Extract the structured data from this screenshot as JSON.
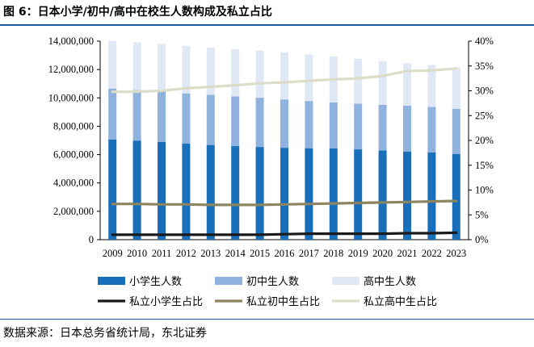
{
  "figure": {
    "title": "图 6：日本小学/初中/高中在校生人数构成及私立占比",
    "source": "数据来源：日本总务省统计局，东北证券"
  },
  "colors": {
    "elementary": "#1a6fba",
    "junior": "#8fb2df",
    "high": "#dfe8f4",
    "line_elementary": "#1a1a1a",
    "line_junior": "#8c8560",
    "line_high": "#dcdcc8",
    "rule": "#1a5a96"
  },
  "chart_data": {
    "type": "bar",
    "stacked": true,
    "categories": [
      "2009",
      "2010",
      "2011",
      "2012",
      "2013",
      "2014",
      "2015",
      "2016",
      "2017",
      "2018",
      "2019",
      "2020",
      "2021",
      "2022",
      "2023"
    ],
    "y_left": {
      "min": 0,
      "max": 14000000,
      "step": 2000000,
      "ticks": [
        "0",
        "2,000,000",
        "4,000,000",
        "6,000,000",
        "8,000,000",
        "10,000,000",
        "12,000,000",
        "14,000,000"
      ]
    },
    "y_right": {
      "min": 0,
      "max": 40,
      "step": 5,
      "ticks": [
        "0%",
        "5%",
        "10%",
        "15%",
        "20%",
        "25%",
        "30%",
        "35%",
        "40%"
      ]
    },
    "series": [
      {
        "name": "小学生人数",
        "kind": "bar",
        "axis": "left",
        "values": [
          7060000,
          6990000,
          6890000,
          6770000,
          6680000,
          6600000,
          6540000,
          6480000,
          6450000,
          6430000,
          6370000,
          6300000,
          6220000,
          6150000,
          6050000
        ]
      },
      {
        "name": "初中生人数",
        "kind": "bar",
        "axis": "left",
        "values": [
          3600000,
          3560000,
          3570000,
          3550000,
          3540000,
          3500000,
          3470000,
          3410000,
          3330000,
          3250000,
          3220000,
          3210000,
          3230000,
          3210000,
          3180000
        ]
      },
      {
        "name": "高中生人数",
        "kind": "bar",
        "axis": "left",
        "values": [
          3350000,
          3370000,
          3350000,
          3350000,
          3320000,
          3330000,
          3320000,
          3310000,
          3280000,
          3240000,
          3170000,
          3090000,
          3010000,
          2960000,
          2920000
        ]
      },
      {
        "name": "私立小学生占比",
        "kind": "line",
        "axis": "right",
        "values": [
          1.0,
          1.0,
          1.0,
          1.0,
          1.0,
          1.0,
          1.0,
          1.1,
          1.2,
          1.2,
          1.2,
          1.2,
          1.3,
          1.3,
          1.4
        ]
      },
      {
        "name": "私立初中生占比",
        "kind": "line",
        "axis": "right",
        "values": [
          7.2,
          7.2,
          7.1,
          7.1,
          7.0,
          7.0,
          7.0,
          7.1,
          7.2,
          7.3,
          7.4,
          7.5,
          7.6,
          7.7,
          7.8
        ]
      },
      {
        "name": "私立高中生占比",
        "kind": "line",
        "axis": "right",
        "values": [
          29.8,
          29.8,
          30.0,
          30.5,
          30.8,
          31.1,
          31.5,
          31.7,
          32.0,
          32.3,
          32.5,
          33.0,
          34.0,
          34.1,
          34.5
        ]
      }
    ],
    "legend": {
      "position": "bottom",
      "rows": [
        [
          "小学生人数",
          "初中生人数",
          "高中生人数"
        ],
        [
          "私立小学生占比",
          "私立初中生占比",
          "私立高中生占比"
        ]
      ]
    },
    "grid": false
  }
}
